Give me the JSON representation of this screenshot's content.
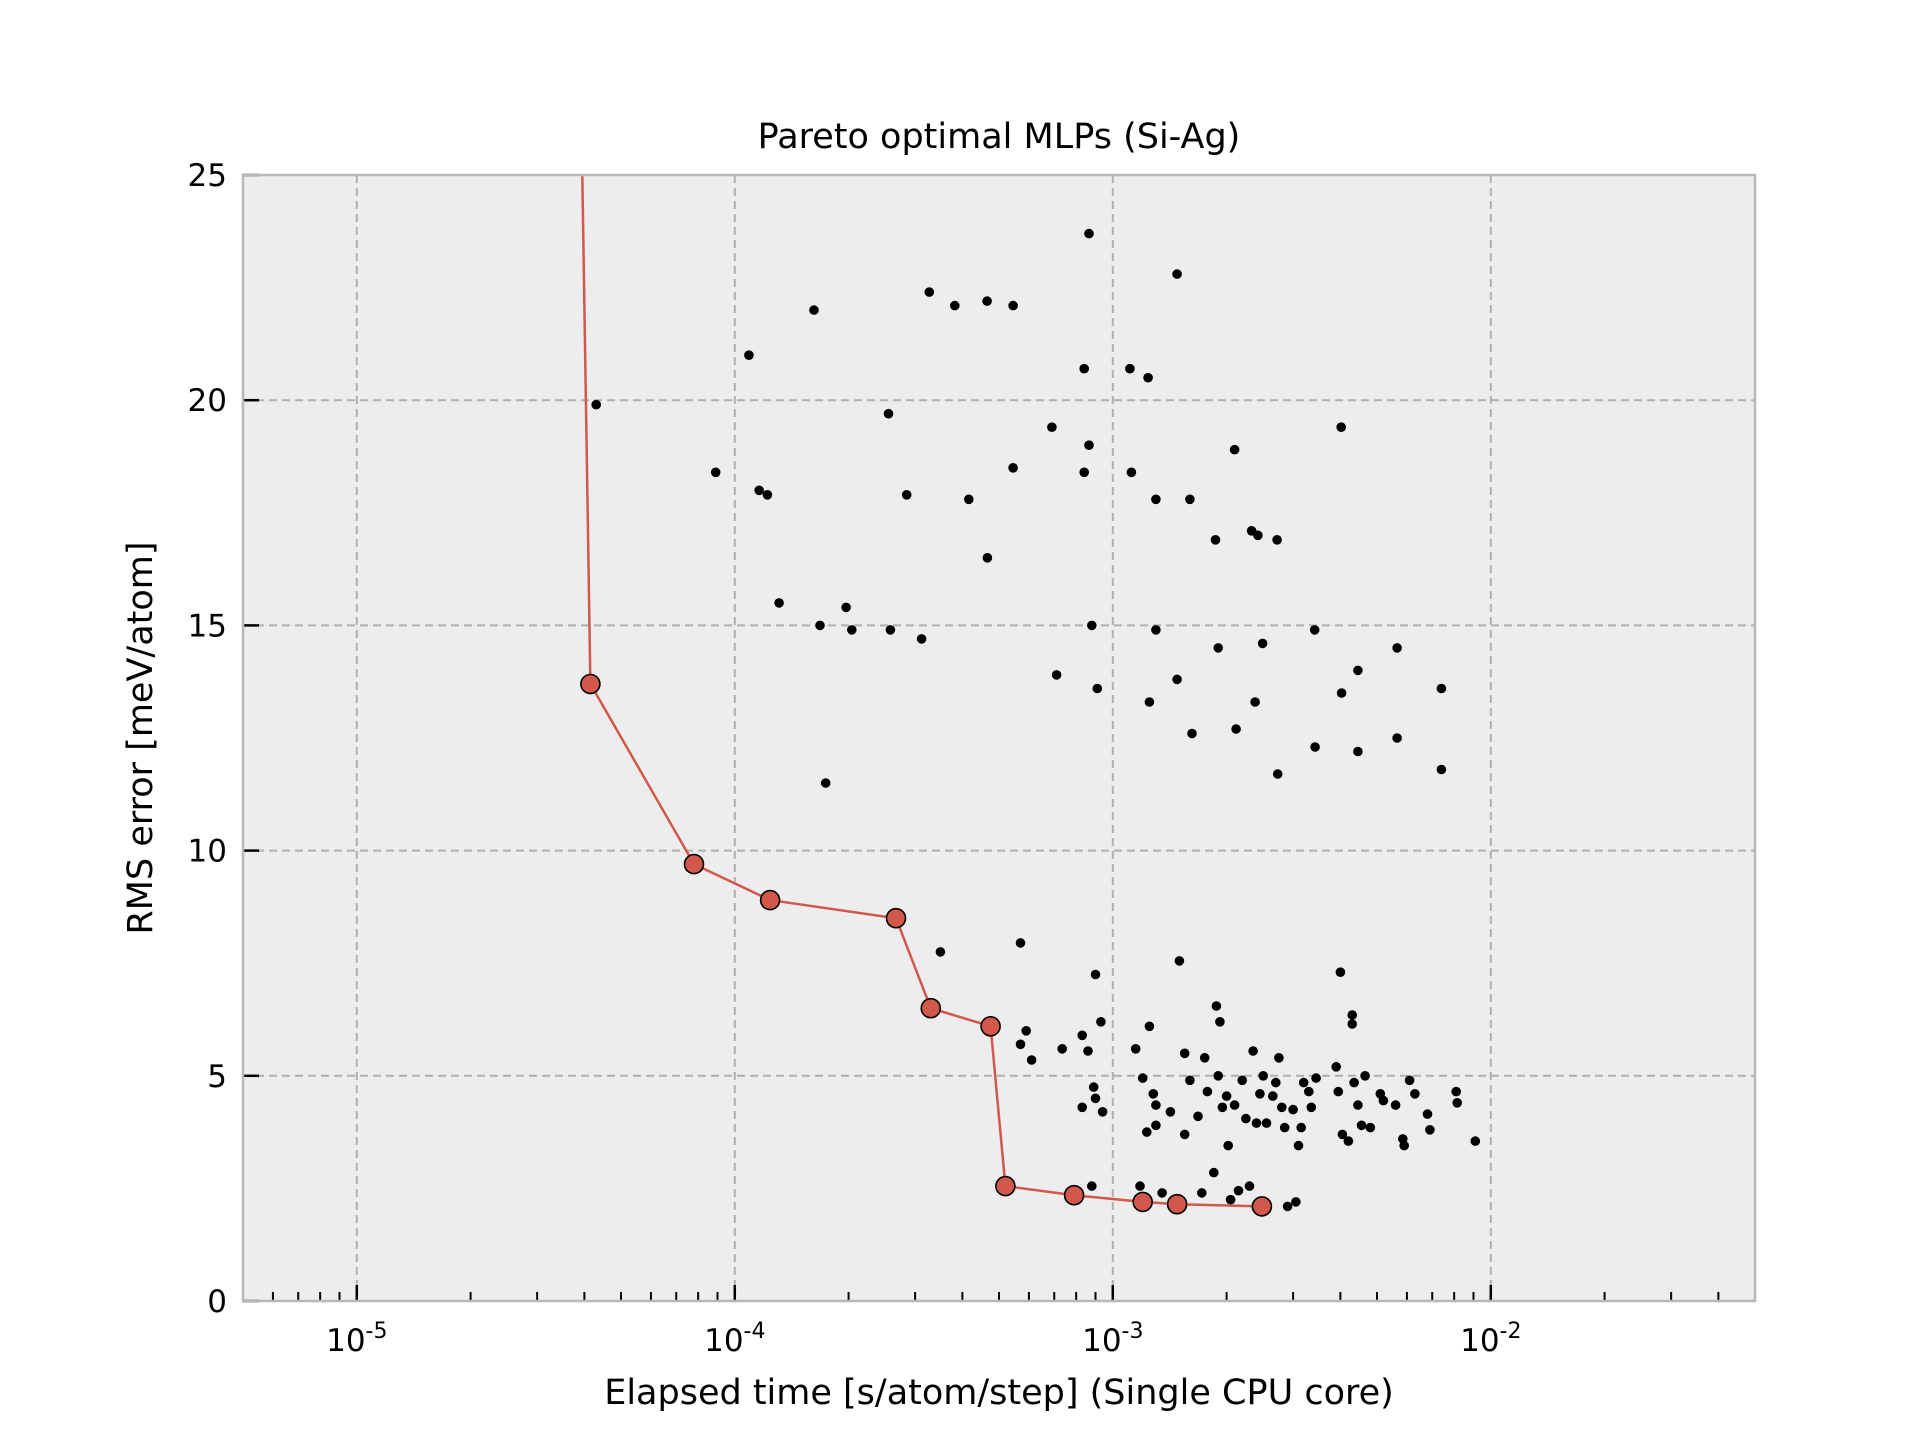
{
  "chart_data": {
    "type": "scatter",
    "title": "Pareto optimal MLPs (Si-Ag)",
    "xlabel": "Elapsed time [s/atom/step] (Single CPU core)",
    "ylabel": "RMS error [meV/atom]",
    "x_scale": "log",
    "xlim": [
      5e-06,
      0.05
    ],
    "ylim": [
      0,
      25
    ],
    "x_ticks": [
      {
        "value": 1e-05,
        "base": "10",
        "exp": "-5"
      },
      {
        "value": 0.0001,
        "base": "10",
        "exp": "-4"
      },
      {
        "value": 0.001,
        "base": "10",
        "exp": "-3"
      },
      {
        "value": 0.01,
        "base": "10",
        "exp": "-2"
      }
    ],
    "y_ticks": [
      0,
      5,
      10,
      15,
      20,
      25
    ],
    "grid": true,
    "colors": {
      "background": "#ededed",
      "frame": "#b8b8b8",
      "grid": "#b0b0b0",
      "pareto": "#d1584a",
      "points": "#000000"
    },
    "series": [
      {
        "kind": "pareto-front",
        "values": [
          [
            3.95e-05,
            25.0
          ],
          [
            4.15e-05,
            13.7
          ],
          [
            7.8e-05,
            9.7
          ],
          [
            0.000124,
            8.9
          ],
          [
            0.000267,
            8.5
          ],
          [
            0.00033,
            6.5
          ],
          [
            0.000475,
            6.1
          ],
          [
            0.00052,
            2.55
          ],
          [
            0.00079,
            2.35
          ],
          [
            0.0012,
            2.2
          ],
          [
            0.00148,
            2.15
          ],
          [
            0.00248,
            2.1
          ]
        ]
      },
      {
        "kind": "all-models",
        "values": [
          [
            4.3e-05,
            19.9
          ],
          [
            8.9e-05,
            18.4
          ],
          [
            0.000109,
            21.0
          ],
          [
            0.000116,
            18.0
          ],
          [
            0.000122,
            17.9
          ],
          [
            0.000162,
            22.0
          ],
          [
            0.000131,
            15.5
          ],
          [
            0.000168,
            15.0
          ],
          [
            0.000174,
            11.5
          ],
          [
            0.000197,
            15.4
          ],
          [
            0.000204,
            14.9
          ],
          [
            0.000255,
            19.7
          ],
          [
            0.000258,
            14.9
          ],
          [
            0.000285,
            17.9
          ],
          [
            0.000312,
            14.7
          ],
          [
            0.000327,
            22.4
          ],
          [
            0.000382,
            22.1
          ],
          [
            0.000416,
            17.8
          ],
          [
            0.000465,
            22.2
          ],
          [
            0.000466,
            16.5
          ],
          [
            0.000545,
            22.1
          ],
          [
            0.000545,
            18.5
          ],
          [
            0.00069,
            19.4
          ],
          [
            0.00071,
            13.9
          ],
          [
            0.00084,
            20.7
          ],
          [
            0.00084,
            18.4
          ],
          [
            0.000865,
            23.7
          ],
          [
            0.000865,
            19.0
          ],
          [
            0.00088,
            15.0
          ],
          [
            0.00091,
            13.6
          ],
          [
            0.00111,
            20.7
          ],
          [
            0.00112,
            18.4
          ],
          [
            0.00124,
            20.5
          ],
          [
            0.00125,
            13.3
          ],
          [
            0.0013,
            17.8
          ],
          [
            0.0013,
            14.9
          ],
          [
            0.00148,
            22.8
          ],
          [
            0.00148,
            13.8
          ],
          [
            0.0016,
            17.8
          ],
          [
            0.00162,
            12.6
          ],
          [
            0.00187,
            16.9
          ],
          [
            0.0019,
            14.5
          ],
          [
            0.0021,
            18.9
          ],
          [
            0.00212,
            12.7
          ],
          [
            0.00233,
            17.1
          ],
          [
            0.00238,
            13.3
          ],
          [
            0.00242,
            17.0
          ],
          [
            0.00249,
            14.6
          ],
          [
            0.00272,
            16.9
          ],
          [
            0.00273,
            11.7
          ],
          [
            0.00342,
            14.9
          ],
          [
            0.00343,
            12.3
          ],
          [
            0.00402,
            19.4
          ],
          [
            0.00403,
            13.5
          ],
          [
            0.00445,
            14.0
          ],
          [
            0.00445,
            12.2
          ],
          [
            0.00565,
            14.5
          ],
          [
            0.00565,
            12.5
          ],
          [
            0.0074,
            13.6
          ],
          [
            0.0074,
            11.8
          ],
          [
            0.00035,
            7.75
          ],
          [
            0.00057,
            7.95
          ],
          [
            0.00057,
            5.7
          ],
          [
            0.00059,
            6.0
          ],
          [
            0.00061,
            5.35
          ],
          [
            0.000735,
            5.6
          ],
          [
            0.00083,
            5.9
          ],
          [
            0.00083,
            4.3
          ],
          [
            0.00086,
            5.55
          ],
          [
            0.00088,
            2.55
          ],
          [
            0.00089,
            4.75
          ],
          [
            0.0009,
            7.25
          ],
          [
            0.0009,
            4.5
          ],
          [
            0.00093,
            6.2
          ],
          [
            0.00094,
            4.2
          ],
          [
            0.00115,
            5.6
          ],
          [
            0.00118,
            2.55
          ],
          [
            0.0012,
            4.95
          ],
          [
            0.00123,
            3.75
          ],
          [
            0.00125,
            6.1
          ],
          [
            0.00128,
            4.6
          ],
          [
            0.0013,
            4.35
          ],
          [
            0.0013,
            3.9
          ],
          [
            0.00135,
            2.4
          ],
          [
            0.00142,
            4.2
          ],
          [
            0.0015,
            7.55
          ],
          [
            0.00155,
            5.5
          ],
          [
            0.00155,
            3.7
          ],
          [
            0.0016,
            4.9
          ],
          [
            0.00168,
            4.1
          ],
          [
            0.00172,
            2.4
          ],
          [
            0.00175,
            5.4
          ],
          [
            0.00178,
            4.65
          ],
          [
            0.00185,
            2.85
          ],
          [
            0.00188,
            6.55
          ],
          [
            0.0019,
            5.0
          ],
          [
            0.00192,
            6.2
          ],
          [
            0.00195,
            4.3
          ],
          [
            0.002,
            4.55
          ],
          [
            0.00202,
            3.45
          ],
          [
            0.00205,
            2.25
          ],
          [
            0.0021,
            4.35
          ],
          [
            0.00215,
            2.45
          ],
          [
            0.0022,
            4.9
          ],
          [
            0.00225,
            4.05
          ],
          [
            0.0023,
            2.55
          ],
          [
            0.00235,
            5.55
          ],
          [
            0.0024,
            3.95
          ],
          [
            0.00245,
            4.6
          ],
          [
            0.0025,
            5.0
          ],
          [
            0.00255,
            3.95
          ],
          [
            0.00265,
            4.55
          ],
          [
            0.0027,
            4.85
          ],
          [
            0.00275,
            5.4
          ],
          [
            0.0028,
            4.3
          ],
          [
            0.00285,
            3.85
          ],
          [
            0.0029,
            2.1
          ],
          [
            0.003,
            4.25
          ],
          [
            0.00305,
            2.2
          ],
          [
            0.0031,
            3.45
          ],
          [
            0.00315,
            3.85
          ],
          [
            0.0032,
            4.85
          ],
          [
            0.0033,
            4.65
          ],
          [
            0.00335,
            4.3
          ],
          [
            0.00345,
            4.95
          ],
          [
            0.0039,
            5.2
          ],
          [
            0.00395,
            4.65
          ],
          [
            0.004,
            7.3
          ],
          [
            0.00405,
            3.7
          ],
          [
            0.0042,
            3.55
          ],
          [
            0.0043,
            6.35
          ],
          [
            0.0043,
            6.15
          ],
          [
            0.00435,
            4.85
          ],
          [
            0.00445,
            4.35
          ],
          [
            0.00455,
            3.9
          ],
          [
            0.00465,
            5.0
          ],
          [
            0.0048,
            3.85
          ],
          [
            0.0051,
            4.6
          ],
          [
            0.0052,
            4.45
          ],
          [
            0.0056,
            4.35
          ],
          [
            0.00585,
            3.6
          ],
          [
            0.0059,
            3.45
          ],
          [
            0.0061,
            4.9
          ],
          [
            0.0063,
            4.6
          ],
          [
            0.0068,
            4.15
          ],
          [
            0.0069,
            3.8
          ],
          [
            0.0081,
            4.65
          ],
          [
            0.00815,
            4.4
          ],
          [
            0.0091,
            3.55
          ]
        ]
      }
    ]
  }
}
